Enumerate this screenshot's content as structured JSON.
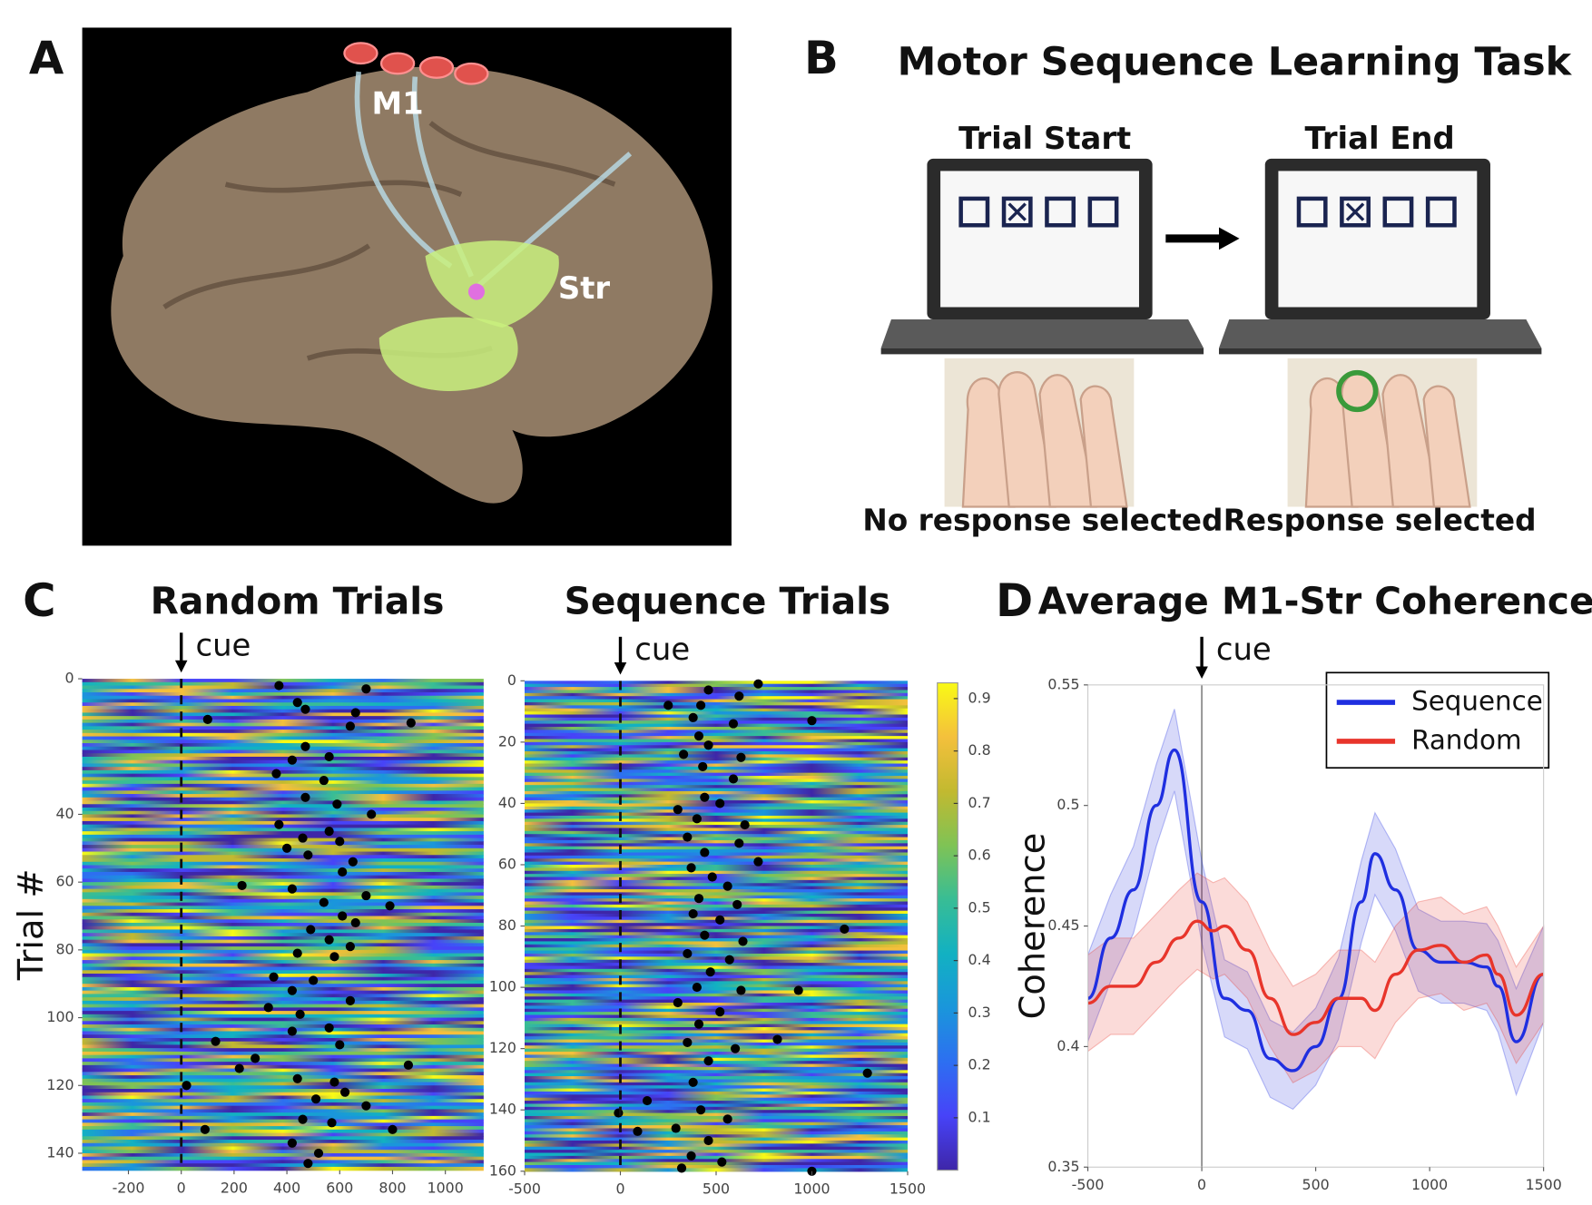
{
  "panel_labels": [
    "A",
    "B",
    "C",
    "D"
  ],
  "panel_a": {
    "regions": [
      "M1",
      "Str"
    ]
  },
  "panel_b": {
    "title": "Motor Sequence Learning Task",
    "screens": [
      {
        "caption": "Trial Start",
        "footer": "No response selected"
      },
      {
        "caption": "Trial End",
        "footer": "Response selected"
      }
    ]
  },
  "chart_data": [
    {
      "type": "heatmap",
      "title": "Random Trials",
      "y_label": "Trial #",
      "annotation": "cue",
      "cue_at": 0,
      "xlim": [
        -375,
        1145
      ],
      "ylim": [
        0,
        145
      ],
      "xticks": [
        -200,
        0,
        200,
        400,
        600,
        800,
        1000
      ],
      "yticks": [
        0,
        40,
        60,
        80,
        100,
        120,
        140
      ],
      "dots": {
        "x": [
          370,
          700,
          440,
          470,
          660,
          100,
          640,
          870,
          470,
          420,
          560,
          360,
          540,
          470,
          590,
          720,
          370,
          560,
          460,
          600,
          400,
          480,
          650,
          610,
          230,
          420,
          700,
          540,
          790,
          610,
          660,
          490,
          560,
          640,
          440,
          580,
          350,
          500,
          420,
          640,
          330,
          450,
          560,
          420,
          600,
          130,
          280,
          220,
          860,
          440,
          580,
          20,
          620,
          510,
          700,
          460,
          570,
          90,
          800,
          420,
          520,
          480
        ],
        "y": [
          2,
          3,
          7,
          9,
          10,
          12,
          14,
          13,
          20,
          24,
          23,
          28,
          30,
          35,
          37,
          40,
          43,
          45,
          47,
          48,
          50,
          52,
          54,
          57,
          61,
          62,
          64,
          66,
          67,
          70,
          72,
          74,
          77,
          79,
          81,
          82,
          88,
          89,
          92,
          95,
          97,
          99,
          103,
          104,
          108,
          107,
          112,
          115,
          114,
          118,
          119,
          120,
          122,
          124,
          126,
          130,
          131,
          133,
          133,
          137,
          140,
          143
        ]
      }
    },
    {
      "type": "heatmap",
      "title": "Sequence Trials",
      "annotation": "cue",
      "cue_at": 0,
      "xlim": [
        -500,
        1500
      ],
      "ylim": [
        0,
        160
      ],
      "xticks": [
        -500,
        0,
        500,
        1000,
        1500
      ],
      "yticks": [
        0,
        20,
        40,
        60,
        80,
        100,
        120,
        140,
        160
      ],
      "clim": [
        0,
        0.93
      ],
      "cticks": [
        0.1,
        0.2,
        0.3,
        0.4,
        0.5,
        0.6,
        0.7,
        0.8,
        0.9
      ],
      "dots": {
        "x": [
          720,
          460,
          620,
          250,
          420,
          380,
          590,
          1000,
          410,
          460,
          330,
          630,
          430,
          590,
          440,
          520,
          300,
          400,
          650,
          350,
          620,
          440,
          720,
          370,
          480,
          560,
          410,
          610,
          380,
          520,
          1170,
          440,
          640,
          350,
          570,
          470,
          400,
          630,
          930,
          300,
          520,
          410,
          820,
          350,
          600,
          460,
          1290,
          380,
          140,
          -10,
          420,
          560,
          290,
          460,
          90,
          370,
          530,
          1000,
          320
        ],
        "y": [
          1,
          3,
          5,
          8,
          8,
          12,
          14,
          13,
          18,
          21,
          24,
          25,
          28,
          32,
          38,
          40,
          42,
          45,
          47,
          51,
          53,
          56,
          59,
          61,
          64,
          67,
          71,
          73,
          76,
          78,
          81,
          83,
          85,
          89,
          91,
          95,
          100,
          101,
          101,
          105,
          108,
          112,
          117,
          118,
          120,
          124,
          128,
          131,
          137,
          141,
          140,
          143,
          146,
          150,
          147,
          155,
          157,
          160,
          159
        ]
      }
    },
    {
      "type": "line",
      "title": "Average M1-Str Coherence",
      "y_label": "Coherence",
      "annotation": "cue",
      "cue_at": 0,
      "xlim": [
        -500,
        1500
      ],
      "ylim": [
        0.35,
        0.55
      ],
      "xticks": [
        -500,
        0,
        500,
        1000,
        1500
      ],
      "yticks": [
        0.35,
        0.4,
        0.45,
        0.5,
        0.55
      ],
      "series": [
        {
          "name": "Sequence",
          "color": "#1f2fe0",
          "x": [
            -500,
            -400,
            -300,
            -200,
            -120,
            0,
            100,
            200,
            300,
            400,
            500,
            600,
            700,
            760,
            850,
            950,
            1050,
            1150,
            1250,
            1300,
            1380,
            1500
          ],
          "values": [
            0.42,
            0.445,
            0.465,
            0.5,
            0.523,
            0.46,
            0.42,
            0.415,
            0.395,
            0.39,
            0.4,
            0.42,
            0.46,
            0.48,
            0.465,
            0.44,
            0.435,
            0.435,
            0.433,
            0.425,
            0.402,
            0.43
          ],
          "error": [
            0.018,
            0.018,
            0.018,
            0.017,
            0.017,
            0.017,
            0.016,
            0.016,
            0.016,
            0.016,
            0.016,
            0.017,
            0.017,
            0.017,
            0.017,
            0.017,
            0.017,
            0.017,
            0.018,
            0.019,
            0.022,
            0.02
          ]
        },
        {
          "name": "Random",
          "color": "#e8352b",
          "x": [
            -500,
            -400,
            -300,
            -200,
            -100,
            -20,
            50,
            100,
            200,
            300,
            400,
            500,
            600,
            700,
            760,
            850,
            950,
            1050,
            1150,
            1250,
            1300,
            1380,
            1500
          ],
          "values": [
            0.418,
            0.425,
            0.425,
            0.435,
            0.445,
            0.452,
            0.448,
            0.45,
            0.44,
            0.42,
            0.405,
            0.41,
            0.42,
            0.42,
            0.415,
            0.43,
            0.44,
            0.442,
            0.435,
            0.438,
            0.43,
            0.413,
            0.43
          ],
          "error": [
            0.02,
            0.02,
            0.02,
            0.02,
            0.02,
            0.02,
            0.02,
            0.02,
            0.02,
            0.02,
            0.02,
            0.02,
            0.02,
            0.02,
            0.02,
            0.02,
            0.02,
            0.02,
            0.02,
            0.02,
            0.02,
            0.02,
            0.02
          ]
        }
      ]
    }
  ]
}
